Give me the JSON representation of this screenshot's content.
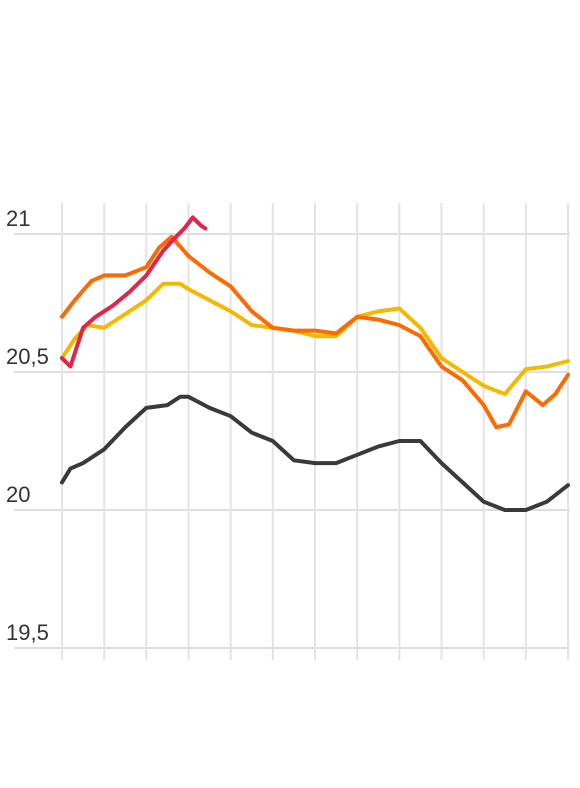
{
  "chart_data": {
    "type": "line",
    "title": "",
    "xlabel": "",
    "ylabel": "",
    "grid": true,
    "ylim": [
      19.5,
      21.1
    ],
    "xlim": [
      0,
      12
    ],
    "y_ticks": [
      {
        "value": 21,
        "label": "21"
      },
      {
        "value": 20.5,
        "label": "20,5"
      },
      {
        "value": 20,
        "label": "20"
      },
      {
        "value": 19.5,
        "label": "19,5"
      }
    ],
    "x_gridlines": [
      0,
      1,
      2,
      3,
      4,
      5,
      6,
      7,
      8,
      9,
      10,
      11,
      12
    ],
    "series": [
      {
        "color": "#3a3a3a",
        "x": [
          0,
          0.2,
          0.5,
          1,
          1.5,
          2,
          2.5,
          2.8,
          3,
          3.5,
          4,
          4.5,
          5,
          5.5,
          6,
          6.5,
          7,
          7.5,
          8,
          8.5,
          9,
          9.5,
          10,
          10.5,
          11,
          11.5,
          12
        ],
        "y": [
          20.1,
          20.15,
          20.17,
          20.22,
          20.3,
          20.37,
          20.38,
          20.41,
          20.41,
          20.37,
          20.34,
          20.28,
          20.25,
          20.18,
          20.17,
          20.17,
          20.2,
          20.23,
          20.25,
          20.25,
          20.17,
          20.1,
          20.03,
          20.0,
          20.0,
          20.03,
          20.09
        ]
      },
      {
        "color": "#f5b800",
        "x": [
          0,
          0.3,
          0.6,
          1,
          1.5,
          2,
          2.4,
          2.8,
          3,
          3.5,
          4,
          4.5,
          5,
          5.5,
          6,
          6.5,
          7,
          7.5,
          8,
          8.5,
          9,
          9.5,
          10,
          10.5,
          11,
          11.5,
          12
        ],
        "y": [
          20.55,
          20.62,
          20.67,
          20.66,
          20.71,
          20.76,
          20.82,
          20.82,
          20.8,
          20.76,
          20.72,
          20.67,
          20.66,
          20.65,
          20.63,
          20.63,
          20.7,
          20.72,
          20.73,
          20.66,
          20.55,
          20.5,
          20.45,
          20.42,
          20.51,
          20.52,
          20.54
        ]
      },
      {
        "color": "#ff6a00",
        "x": [
          0,
          0.3,
          0.7,
          1,
          1.5,
          2,
          2.3,
          2.6,
          3,
          3.5,
          4,
          4.5,
          5,
          5.5,
          6,
          6.5,
          7,
          7.5,
          8,
          8.5,
          9,
          9.5,
          10,
          10.3,
          10.6,
          11,
          11.4,
          11.7,
          12
        ],
        "y": [
          20.7,
          20.76,
          20.83,
          20.85,
          20.85,
          20.88,
          20.95,
          20.99,
          20.92,
          20.86,
          20.81,
          20.72,
          20.66,
          20.65,
          20.65,
          20.64,
          20.7,
          20.69,
          20.67,
          20.63,
          20.52,
          20.47,
          20.38,
          20.3,
          20.31,
          20.43,
          20.38,
          20.42,
          20.49
        ]
      },
      {
        "color": "#e0244a",
        "x": [
          0,
          0.2,
          0.5,
          0.8,
          1.2,
          1.6,
          2,
          2.4,
          2.7,
          2.9,
          3.1,
          3.3,
          3.4
        ],
        "y": [
          20.55,
          20.52,
          20.66,
          20.7,
          20.74,
          20.79,
          20.85,
          20.94,
          20.99,
          21.02,
          21.06,
          21.03,
          21.02
        ]
      }
    ]
  }
}
